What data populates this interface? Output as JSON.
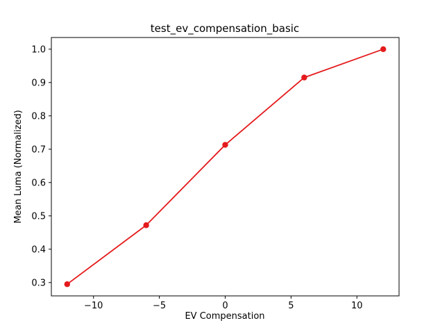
{
  "figure": {
    "background": "#ffffff",
    "text_color": "#000000"
  },
  "chart_data": {
    "type": "line",
    "title": "test_ev_compensation_basic",
    "xlabel": "EV Compensation",
    "ylabel": "Mean Luma (Normalized)",
    "x": [
      -12,
      -6,
      0,
      6,
      12
    ],
    "y": [
      0.295,
      0.472,
      0.713,
      0.915,
      1.0
    ],
    "series": [
      {
        "name": "mean_luma_normalized",
        "values": [
          0.295,
          0.472,
          0.713,
          0.915,
          1.0
        ]
      }
    ],
    "xticks": [
      -10,
      -5,
      0,
      5,
      10
    ],
    "yticks": [
      0.3,
      0.4,
      0.5,
      0.6,
      0.7,
      0.8,
      0.9,
      1.0
    ],
    "xlim": [
      -13.2,
      13.2
    ],
    "ylim": [
      0.26,
      1.035
    ],
    "line_color": "#e41a1c",
    "marker": "o",
    "grid": false,
    "legend_position": "none"
  }
}
